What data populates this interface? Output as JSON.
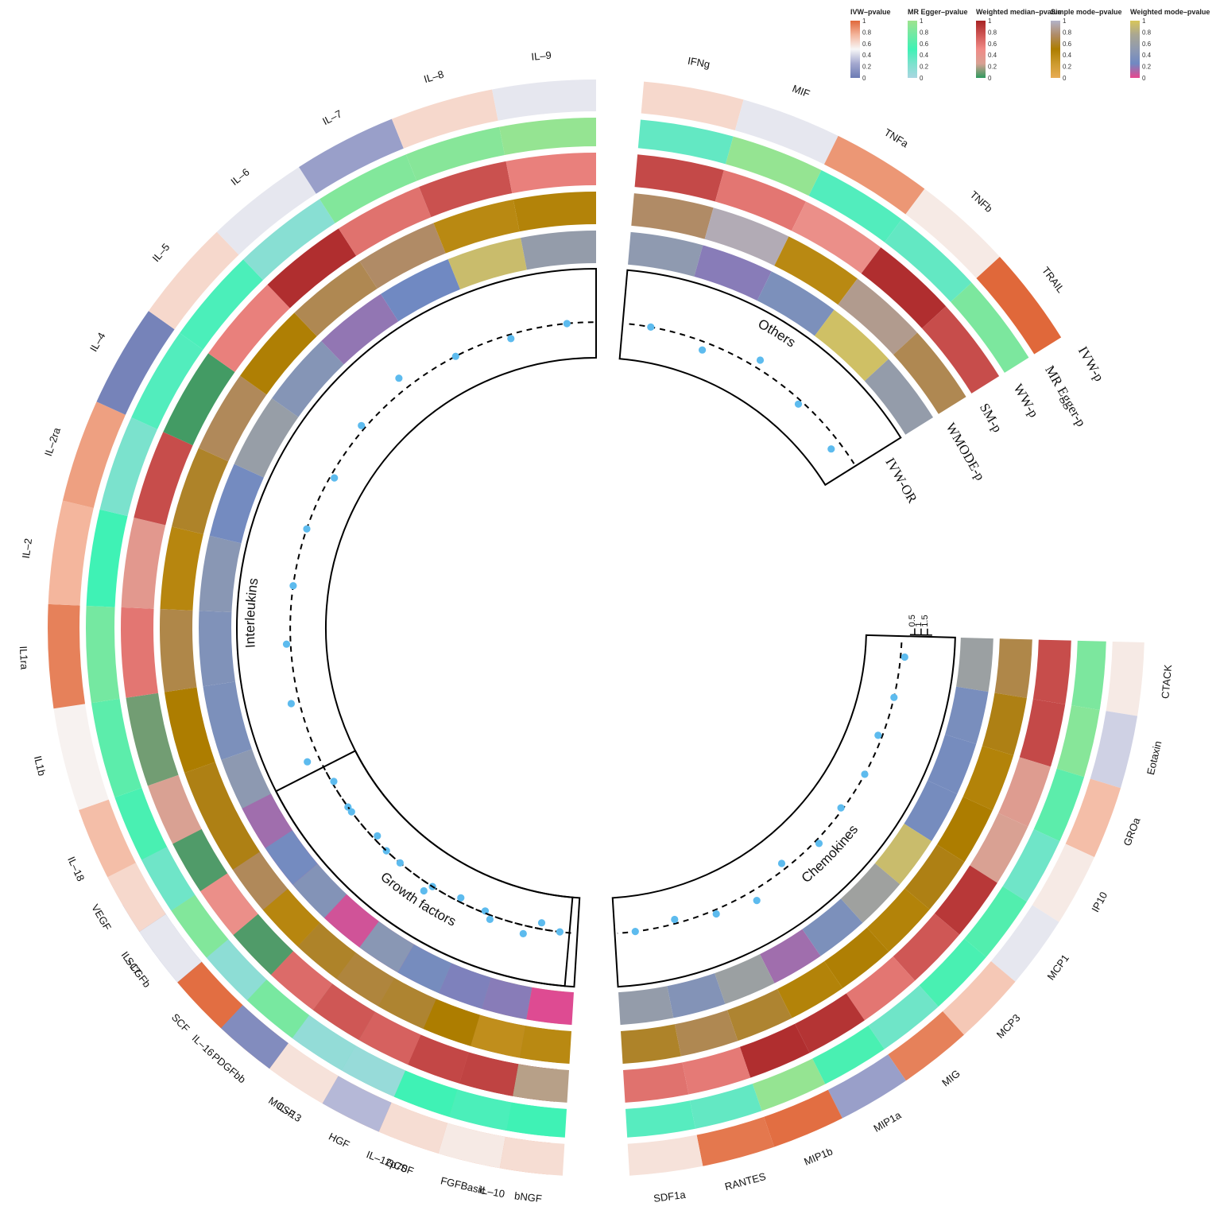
{
  "chart_data": {
    "type": "circos-heatmap",
    "tracks": [
      "IVW-p",
      "MR Egger-p",
      "WW-p",
      "SM-p",
      "WMODE-p",
      "IVW-OR"
    ],
    "legends": [
      {
        "key": "ivw",
        "title": "IVW–pvalue",
        "ticks": [
          "1",
          "0.8",
          "0.6",
          "0.4",
          "0.2",
          "0"
        ],
        "colors": [
          "#e0683a",
          "#f4b69d",
          "#f7f7f7",
          "#a4a8cf",
          "#6b7ab3"
        ]
      },
      {
        "key": "egger",
        "title": "MR Egger–pvalue",
        "ticks": [
          "1",
          "0.8",
          "0.6",
          "0.4",
          "0.2",
          "0"
        ],
        "colors": [
          "#9ee38e",
          "#6fe9a4",
          "#3ff2b5",
          "#7be2cd",
          "#a9d6e1"
        ]
      },
      {
        "key": "wm",
        "title": "Weighted median–pvalue",
        "ticks": [
          "1",
          "0.8",
          "0.6",
          "0.4",
          "0.2",
          "0"
        ],
        "colors": [
          "#a82425",
          "#cf5755",
          "#f08a86",
          "#d9a193",
          "#2e9a5e"
        ]
      },
      {
        "key": "sm",
        "title": "Simple mode–pvalue",
        "ticks": [
          "1",
          "0.8",
          "0.6",
          "0.4",
          "0.2",
          "0"
        ],
        "colors": [
          "#b3b3c9",
          "#b08b66",
          "#ad7d00",
          "#cc9a2e",
          "#e8ac55"
        ]
      },
      {
        "key": "wmode",
        "title": "Weighted mode–pvalue",
        "ticks": [
          "1",
          "0.8",
          "0.6",
          "0.4",
          "0.2",
          "0"
        ],
        "colors": [
          "#d8c65a",
          "#a9a693",
          "#8f9ab0",
          "#7089c2",
          "#e8468e"
        ]
      }
    ],
    "or_axis": {
      "ticks": [
        "1.5",
        "1",
        "0.5"
      ],
      "range": [
        0.5,
        1.5
      ]
    },
    "sectors": [
      {
        "name": "Interleukins",
        "start_deg": 185,
        "end_deg": 360,
        "items": [
          {
            "name": "IL–10",
            "ivw": 0.85,
            "egger": 0.45,
            "wm": 1.0,
            "sm": 0.75,
            "wmode": 0.9,
            "or": 0.97
          },
          {
            "name": "IL–12p70",
            "ivw": 0.78,
            "egger": 0.95,
            "wm": 0.55,
            "sm": 0.65,
            "wmode": 0.62,
            "or": 0.99
          },
          {
            "name": "IL–13",
            "ivw": 0.7,
            "egger": 0.35,
            "wm": 0.15,
            "sm": 0.4,
            "wmode": 0.05,
            "or": 1.0
          },
          {
            "name": "IL–16",
            "ivw": 0.9,
            "egger": 0.15,
            "wm": 0.45,
            "sm": 0.1,
            "wmode": 0.2,
            "or": 1.0
          },
          {
            "name": "IL–17",
            "ivw": 0.1,
            "egger": 0.05,
            "wm": 0.2,
            "sm": 0.6,
            "wmode": 0.0,
            "or": 1.0
          },
          {
            "name": "IL–18",
            "ivw": 0.72,
            "egger": 0.55,
            "wm": 0.25,
            "sm": 0.55,
            "wmode": 0.48,
            "or": 1.06
          },
          {
            "name": "IL1b",
            "ivw": 0.52,
            "egger": 0.65,
            "wm": 0.1,
            "sm": 0.5,
            "wmode": 0.35,
            "or": 1.04
          },
          {
            "name": "IL1ra",
            "ivw": 0.92,
            "egger": 0.78,
            "wm": 0.6,
            "sm": 0.68,
            "wmode": 0.38,
            "or": 1.02
          },
          {
            "name": "IL–2",
            "ivw": 0.75,
            "egger": 0.5,
            "wm": 0.35,
            "sm": 0.42,
            "wmode": 0.45,
            "or": 1.0
          },
          {
            "name": "IL–2ra",
            "ivw": 0.82,
            "egger": 0.25,
            "wm": 0.8,
            "sm": 0.6,
            "wmode": 0.28,
            "or": 1.0
          },
          {
            "name": "IL–4",
            "ivw": 0.05,
            "egger": 0.42,
            "wm": 0.03,
            "sm": 0.72,
            "wmode": 0.58,
            "or": 0.98
          },
          {
            "name": "IL–5",
            "ivw": 0.62,
            "egger": 0.45,
            "wm": 0.55,
            "sm": 0.48,
            "wmode": 0.42,
            "or": 1.02
          },
          {
            "name": "IL–6",
            "ivw": 0.45,
            "egger": 0.18,
            "wm": 0.95,
            "sm": 0.7,
            "wmode": 0.18,
            "or": 1.06
          },
          {
            "name": "IL–7",
            "ivw": 0.2,
            "egger": 0.85,
            "wm": 0.62,
            "sm": 0.75,
            "wmode": 0.25,
            "or": 1.0
          },
          {
            "name": "IL–8",
            "ivw": 0.62,
            "egger": 0.88,
            "wm": 0.78,
            "sm": 0.4,
            "wmode": 0.92,
            "or": 0.98
          },
          {
            "name": "IL–9",
            "ivw": 0.45,
            "egger": 0.95,
            "wm": 0.55,
            "sm": 0.45,
            "wmode": 0.55,
            "or": 1.0
          }
        ]
      },
      {
        "name": "Others",
        "start_deg": 5,
        "end_deg": 58,
        "items": [
          {
            "name": "IFNg",
            "ivw": 0.62,
            "egger": 0.35,
            "wm": 0.82,
            "sm": 0.75,
            "wmode": 0.5,
            "or": 1.0
          },
          {
            "name": "MIF",
            "ivw": 0.45,
            "egger": 0.95,
            "wm": 0.6,
            "sm": 0.95,
            "wmode": 0.2,
            "or": 0.96
          },
          {
            "name": "TNFa",
            "ivw": 0.85,
            "egger": 0.42,
            "wm": 0.45,
            "sm": 0.4,
            "wmode": 0.35,
            "or": 1.04
          },
          {
            "name": "TNFb",
            "ivw": 0.55,
            "egger": 0.35,
            "wm": 0.95,
            "sm": 0.85,
            "wmode": 0.95,
            "or": 0.98
          },
          {
            "name": "TRAIL",
            "ivw": 1.0,
            "egger": 0.82,
            "wm": 0.8,
            "sm": 0.7,
            "wmode": 0.55,
            "or": 0.95
          }
        ]
      },
      {
        "name": "Chemokines",
        "start_deg": 91.5,
        "end_deg": 176.5,
        "items": [
          {
            "name": "CTACK",
            "ivw": 0.55,
            "egger": 0.82,
            "wm": 0.8,
            "sm": 0.68,
            "wmode": 0.62,
            "or": 1.02
          },
          {
            "name": "Eotaxin",
            "ivw": 0.38,
            "egger": 0.88,
            "wm": 0.82,
            "sm": 0.55,
            "wmode": 0.32,
            "or": 1.0
          },
          {
            "name": "GROa",
            "ivw": 0.72,
            "egger": 0.65,
            "wm": 0.3,
            "sm": 0.45,
            "wmode": 0.3,
            "or": 0.98
          },
          {
            "name": "IP10",
            "ivw": 0.55,
            "egger": 0.3,
            "wm": 0.25,
            "sm": 0.5,
            "wmode": 0.3,
            "or": 1.0
          },
          {
            "name": "MCP1",
            "ivw": 0.45,
            "egger": 0.6,
            "wm": 0.9,
            "sm": 0.55,
            "wmode": 0.92,
            "or": 0.99
          },
          {
            "name": "MCP3",
            "ivw": 0.68,
            "egger": 0.55,
            "wm": 0.75,
            "sm": 0.45,
            "wmode": 0.65,
            "or": 1.02
          },
          {
            "name": "MIG",
            "ivw": 0.92,
            "egger": 0.3,
            "wm": 0.6,
            "sm": 0.48,
            "wmode": 0.35,
            "or": 0.97
          },
          {
            "name": "MIP1a",
            "ivw": 0.2,
            "egger": 0.55,
            "wm": 0.92,
            "sm": 0.45,
            "wmode": 0.15,
            "or": 1.05
          },
          {
            "name": "MIP1b",
            "ivw": 0.98,
            "egger": 0.95,
            "wm": 0.95,
            "sm": 0.62,
            "wmode": 0.62,
            "or": 1.02
          },
          {
            "name": "RANTES",
            "ivw": 0.95,
            "egger": 0.35,
            "wm": 0.58,
            "sm": 0.7,
            "wmode": 0.4,
            "or": 0.98
          },
          {
            "name": "SDF1a",
            "ivw": 0.58,
            "egger": 0.4,
            "wm": 0.62,
            "sm": 0.6,
            "wmode": 0.55,
            "or": 1.0
          }
        ]
      },
      {
        "name": "Growth factors",
        "start_deg": 183.5,
        "end_deg": 243,
        "items": [
          {
            "name": "bNGF",
            "ivw": 0.6,
            "egger": 0.5,
            "wm": 0.2,
            "sm": 0.4,
            "wmode": 0.02,
            "or": 1.0
          },
          {
            "name": "FGFBasic",
            "ivw": 0.55,
            "egger": 0.45,
            "wm": 0.85,
            "sm": 0.35,
            "wmode": 0.2,
            "or": 1.04
          },
          {
            "name": "GCSF",
            "ivw": 0.6,
            "egger": 0.5,
            "wm": 0.83,
            "sm": 0.5,
            "wmode": 0.22,
            "or": 1.02
          },
          {
            "name": "HGF",
            "ivw": 0.3,
            "egger": 0.1,
            "wm": 0.7,
            "sm": 0.62,
            "wmode": 0.3,
            "or": 0.98
          },
          {
            "name": "MCSF",
            "ivw": 0.58,
            "egger": 0.12,
            "wm": 0.75,
            "sm": 0.65,
            "wmode": 0.45,
            "or": 1.04
          },
          {
            "name": "PDGFbb",
            "ivw": 0.1,
            "egger": 0.8,
            "wm": 0.65,
            "sm": 0.6,
            "wmode": 0.05,
            "or": 1.0
          },
          {
            "name": "SCF",
            "ivw": 0.98,
            "egger": 0.15,
            "wm": 0.05,
            "sm": 0.42,
            "wmode": 0.4,
            "or": 0.98
          },
          {
            "name": "SCGFb",
            "ivw": 0.45,
            "egger": 0.85,
            "wm": 0.45,
            "sm": 0.72,
            "wmode": 0.28,
            "or": 1.0
          },
          {
            "name": "VEGF",
            "ivw": 0.62,
            "egger": 0.3,
            "wm": 0.05,
            "sm": 0.55,
            "wmode": 0.15,
            "or": 0.99
          }
        ]
      }
    ]
  }
}
